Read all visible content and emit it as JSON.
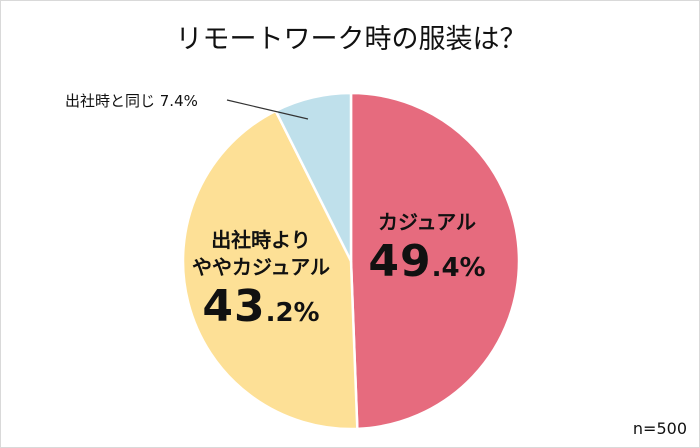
{
  "title": "リモートワーク時の服装は？",
  "sample_note": "n=500",
  "slices": [
    {
      "name": "カジュアル",
      "value": 49.4,
      "pct_int": "49",
      "pct_dec": ".4%",
      "color": "#e66b7e"
    },
    {
      "name_line1": "出社時より",
      "name_line2": "ややカジュアル",
      "value": 43.2,
      "pct_int": "43",
      "pct_dec": ".2%",
      "color": "#fde096"
    },
    {
      "label": "出社時と同じ  7.4%",
      "name": "出社時と同じ",
      "value": 7.4,
      "color": "#bfe0eb"
    }
  ],
  "chart_data": {
    "type": "pie",
    "title": "リモートワーク時の服装は？",
    "categories": [
      "カジュアル",
      "出社時よりややカジュアル",
      "出社時と同じ"
    ],
    "values": [
      49.4,
      43.2,
      7.4
    ],
    "colors": [
      "#e66b7e",
      "#fde096",
      "#bfe0eb"
    ],
    "unit": "%",
    "start_angle": "12 o'clock, clockwise",
    "annotation": "n=500",
    "legend": "none (direct labels)"
  }
}
